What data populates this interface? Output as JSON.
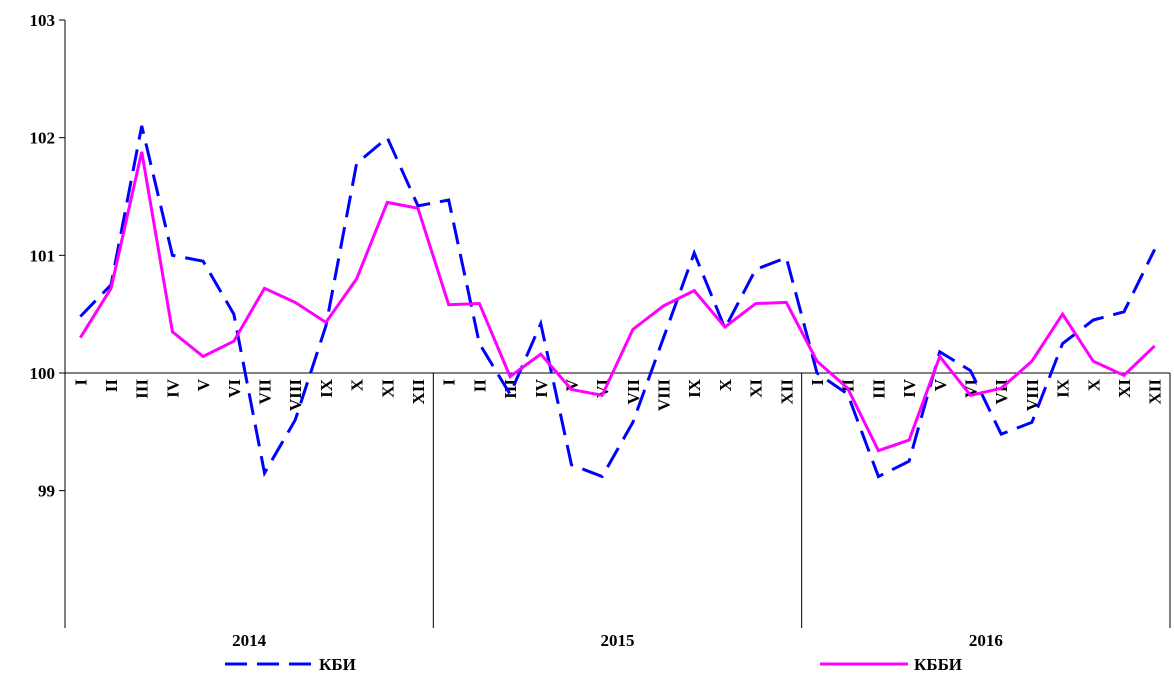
{
  "chart_data": {
    "type": "line",
    "categories": [
      "I",
      "II",
      "III",
      "IV",
      "V",
      "VI",
      "VII",
      "VIII",
      "IX",
      "X",
      "XI",
      "XII",
      "I",
      "II",
      "III",
      "IV",
      "V",
      "VI",
      "VII",
      "VIII",
      "IX",
      "X",
      "XI",
      "XII",
      "I",
      "II",
      "III",
      "IV",
      "V",
      "VI",
      "VII",
      "VIII",
      "IX",
      "X",
      "XI",
      "XII"
    ],
    "groups": [
      "2014",
      "2015",
      "2016"
    ],
    "series": [
      {
        "name": "КБИ",
        "color": "#0000ff",
        "dashed": true,
        "values": [
          100.48,
          100.75,
          102.1,
          101.0,
          100.95,
          100.5,
          99.15,
          99.6,
          100.4,
          101.78,
          102.0,
          101.42,
          101.47,
          100.25,
          99.82,
          100.42,
          99.22,
          99.12,
          99.58,
          100.3,
          101.02,
          100.38,
          100.88,
          100.98,
          100.0,
          99.82,
          99.12,
          99.25,
          100.18,
          100.02,
          99.48,
          99.58,
          100.25,
          100.45,
          100.52,
          101.05
        ]
      },
      {
        "name": "КББИ",
        "color": "#ff00ff",
        "dashed": false,
        "values": [
          100.3,
          100.72,
          101.88,
          100.35,
          100.14,
          100.27,
          100.72,
          100.6,
          100.43,
          100.8,
          101.45,
          101.4,
          100.58,
          100.59,
          99.97,
          100.16,
          99.86,
          99.81,
          100.37,
          100.57,
          100.7,
          100.39,
          100.59,
          100.6,
          100.1,
          99.87,
          99.34,
          99.43,
          100.14,
          99.81,
          99.87,
          100.1,
          100.5,
          100.1,
          99.98,
          100.23
        ]
      }
    ],
    "ylim": [
      98,
      103
    ],
    "yticks": [
      99,
      100,
      101,
      102,
      103
    ],
    "axis_cross": 100
  }
}
